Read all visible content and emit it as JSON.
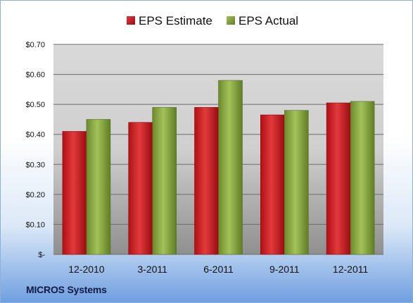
{
  "chart_data": {
    "type": "bar",
    "categories": [
      "12-2010",
      "3-2011",
      "6-2011",
      "9-2011",
      "12-2011"
    ],
    "series": [
      {
        "name": "EPS Estimate",
        "values": [
          0.41,
          0.44,
          0.49,
          0.465,
          0.505
        ],
        "color": "#c0161a"
      },
      {
        "name": "EPS Actual",
        "values": [
          0.45,
          0.49,
          0.58,
          0.48,
          0.51
        ],
        "color": "#7e9c35"
      }
    ],
    "yticks": [
      {
        "value": 0,
        "label": "$-"
      },
      {
        "value": 0.1,
        "label": "$0.10"
      },
      {
        "value": 0.2,
        "label": "$0.20"
      },
      {
        "value": 0.3,
        "label": "$0.30"
      },
      {
        "value": 0.4,
        "label": "$0.40"
      },
      {
        "value": 0.5,
        "label": "$0.50"
      },
      {
        "value": 0.6,
        "label": "$0.60"
      },
      {
        "value": 0.7,
        "label": "$0.70"
      }
    ],
    "ylim": [
      0,
      0.7
    ],
    "grid": true,
    "legend_position": "top"
  },
  "footer": {
    "company": "MICROS Systems"
  }
}
